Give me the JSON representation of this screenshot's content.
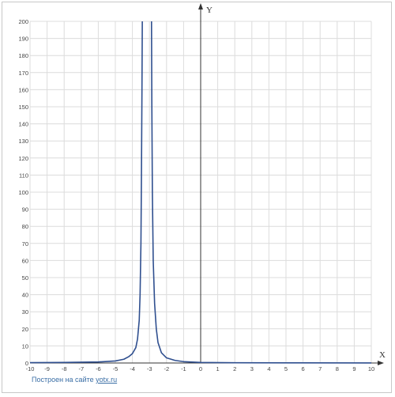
{
  "chart_data": {
    "type": "line",
    "title": "",
    "xlabel": "X",
    "ylabel": "Y",
    "xlim": [
      -10,
      10
    ],
    "ylim": [
      0,
      200
    ],
    "x_ticks": [
      -10,
      -9,
      -8,
      -7,
      -6,
      -5,
      -4,
      -3,
      -2,
      -1,
      0,
      1,
      2,
      3,
      4,
      5,
      6,
      7,
      8,
      9,
      10
    ],
    "y_ticks": [
      0,
      10,
      20,
      30,
      40,
      50,
      60,
      70,
      80,
      90,
      100,
      110,
      120,
      130,
      140,
      150,
      160,
      170,
      180,
      190,
      200
    ],
    "grid": true,
    "series": [
      {
        "color": "#2f4f8f",
        "points": [
          [
            -10,
            0.2
          ],
          [
            -8,
            0.3
          ],
          [
            -6,
            0.6
          ],
          [
            -5,
            1.2
          ],
          [
            -4.5,
            2.2
          ],
          [
            -4.2,
            3.8
          ],
          [
            -4.0,
            5.5
          ],
          [
            -3.8,
            9
          ],
          [
            -3.7,
            14
          ],
          [
            -3.6,
            25
          ],
          [
            -3.55,
            40
          ],
          [
            -3.5,
            70
          ],
          [
            -3.47,
            110
          ],
          [
            -3.44,
            160
          ],
          [
            -3.42,
            200
          ]
        ]
      },
      {
        "color": "#2f4f8f",
        "points": [
          [
            -2.88,
            200
          ],
          [
            -2.86,
            150
          ],
          [
            -2.83,
            100
          ],
          [
            -2.78,
            60
          ],
          [
            -2.7,
            35
          ],
          [
            -2.6,
            20
          ],
          [
            -2.5,
            12
          ],
          [
            -2.3,
            6
          ],
          [
            -2.0,
            3
          ],
          [
            -1.5,
            1.5
          ],
          [
            -1,
            0.8
          ],
          [
            0,
            0.3
          ],
          [
            2,
            0.15
          ],
          [
            5,
            0.08
          ],
          [
            10,
            0.05
          ]
        ]
      }
    ]
  },
  "footer": {
    "prefix": "Построен на сайте ",
    "link_text": "yotx.ru"
  }
}
